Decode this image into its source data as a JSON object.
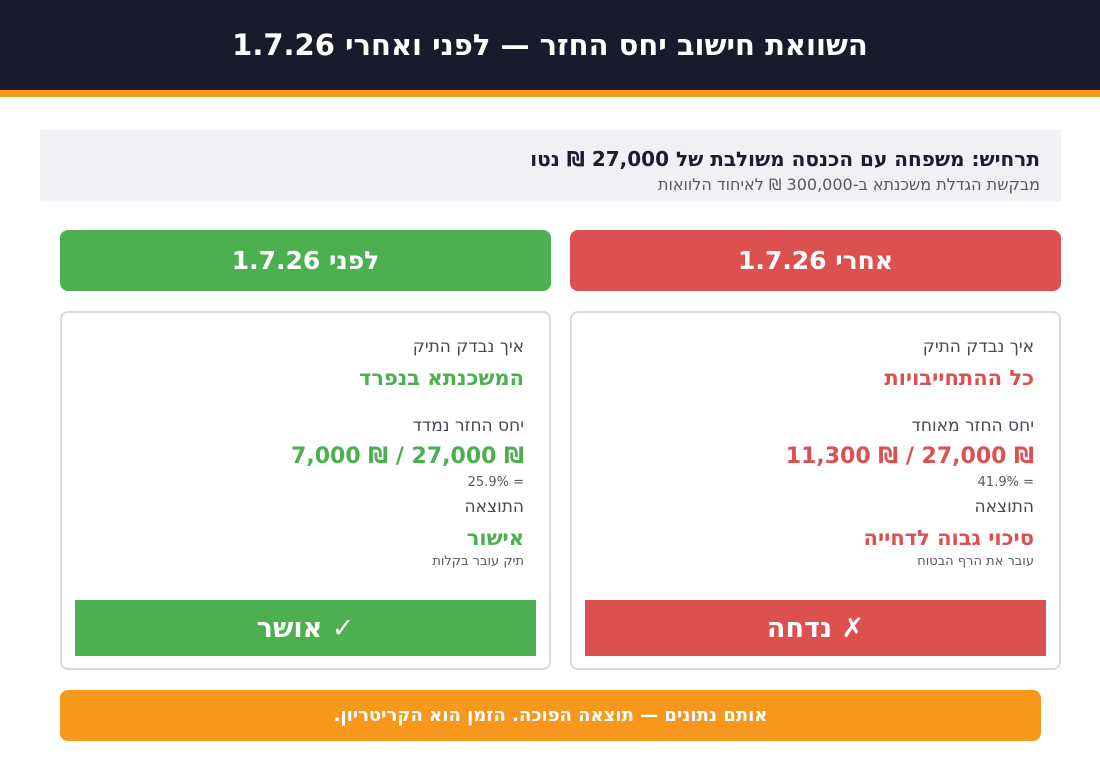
{
  "header": {
    "title": "השוואת חישוב יחס החזר — לפני ואחרי 1.7.26"
  },
  "scenario": {
    "title": "תרחיש: משפחה עם הכנסה משולבת של 27,000 ₪ נטו",
    "subtitle": "מבקשת הגדלת משכנתא ב-300,000 ₪ לאיחוד הלוואות"
  },
  "after": {
    "heading": "אחרי 1.7.26",
    "how_label": "איך נבדק התיק",
    "how_value": "כל ההתחייבויות",
    "ratio_label": "יחס החזר מאוחד",
    "ratio_value": "11,300 ₪ / 27,000 ₪",
    "ratio_pct": "= 41.9%",
    "result_label": "התוצאה",
    "result_value": "סיכוי גבוה לדחייה",
    "result_note": "עובר את הרף הבטוח",
    "verdict": "✗ נדחה",
    "color": "#dc514f"
  },
  "before": {
    "heading": "לפני 1.7.26",
    "how_label": "איך נבדק התיק",
    "how_value": "המשכנתא בנפרד",
    "ratio_label": "יחס החזר נמדד",
    "ratio_value": "7,000 ₪ / 27,000 ₪",
    "ratio_pct": "= 25.9%",
    "result_label": "התוצאה",
    "result_value": "אישור",
    "result_note": "תיק עובר בקלות",
    "verdict": "✓ אושר",
    "color": "#4caf50"
  },
  "footer": {
    "text": "אותם נתונים — תוצאה הפוכה. הזמן הוא הקריטריון."
  },
  "colors": {
    "header_bg": "#1a1a2e",
    "accent": "#f7981d"
  }
}
